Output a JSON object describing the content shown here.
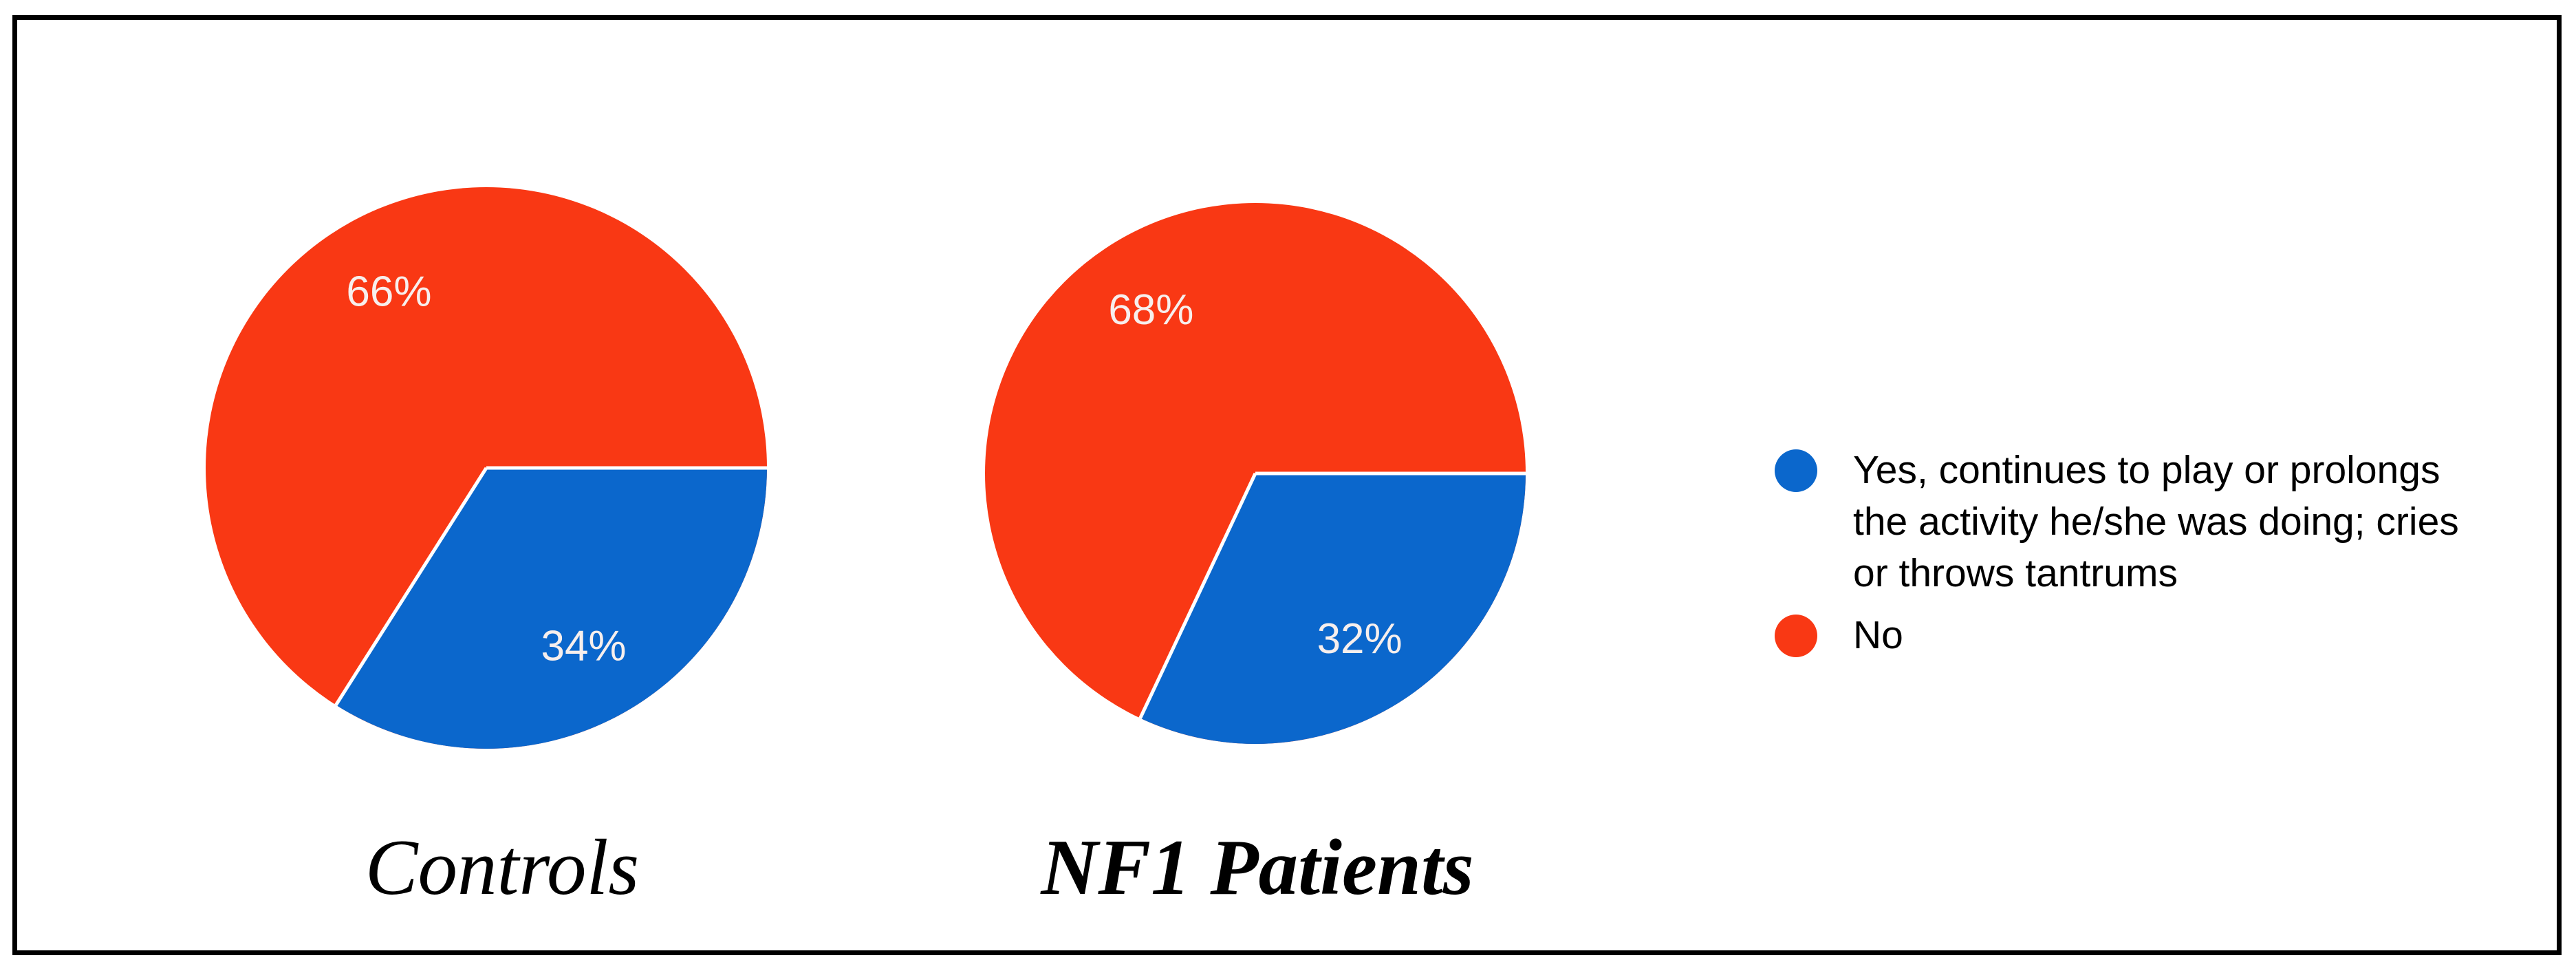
{
  "figure": {
    "background_color": "#ffffff",
    "border_color": "#000000"
  },
  "chart_data": [
    {
      "type": "pie",
      "title": "Controls",
      "labels": [
        "Yes, continues to play or prolongs the activity he/she was doing; cries or throws tantrums",
        "No"
      ],
      "values": [
        34,
        66
      ],
      "data_labels": [
        "34%",
        "66%"
      ],
      "colors": [
        "#0b67cc",
        "#f93814"
      ],
      "data_label_color": "#f7efed",
      "start_angle_deg": 0,
      "direction": "clockwise",
      "legend_position": "right"
    },
    {
      "type": "pie",
      "title": "NF1 Patients",
      "labels": [
        "Yes, continues to play or prolongs the activity he/she was doing; cries or throws tantrums",
        "No"
      ],
      "values": [
        32,
        68
      ],
      "data_labels": [
        "32%",
        "68%"
      ],
      "colors": [
        "#0b67cc",
        "#f93814"
      ],
      "data_label_color": "#f7efed",
      "start_angle_deg": 0,
      "direction": "clockwise",
      "legend_position": "right"
    }
  ],
  "legend": {
    "items": [
      {
        "label": "Yes, continues to play or prolongs the activity he/she was doing; cries or throws tantrums",
        "color": "#0b67cc"
      },
      {
        "label": "No",
        "color": "#f93814"
      }
    ]
  }
}
